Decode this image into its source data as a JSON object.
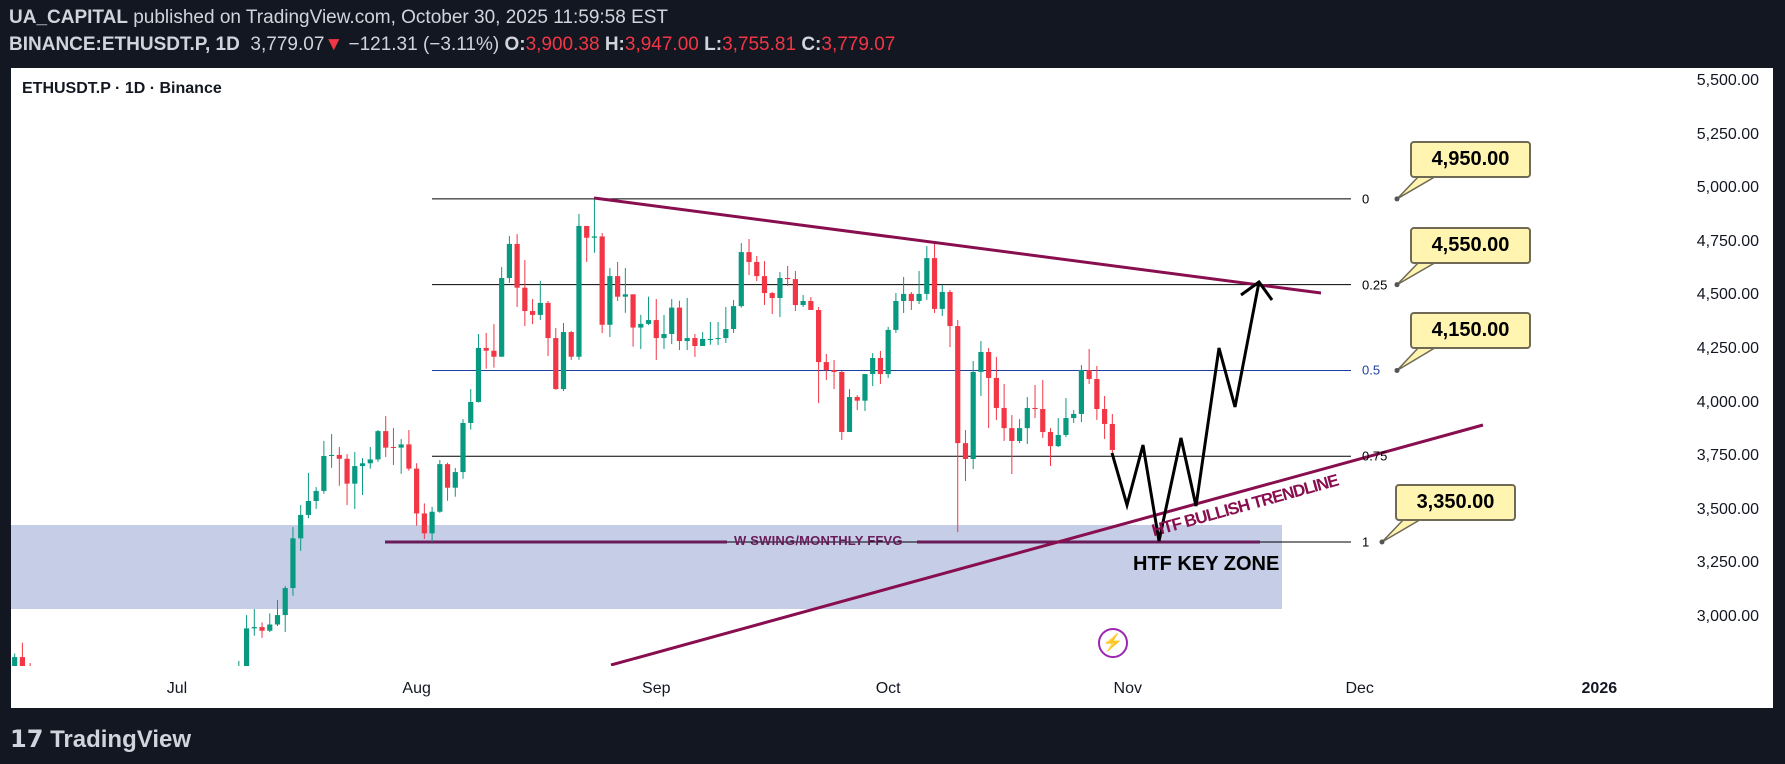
{
  "header": {
    "author": "UA_CAPITAL",
    "published": " published on TradingView.com, October 30, 2025 11:59:58 EST",
    "symbol": "BINANCE:ETHUSDT.P, 1D",
    "last": "3,779.07",
    "direction_glyph": "▼",
    "change": "−121.31 (−3.11%)",
    "o_label": "O:",
    "o": "3,900.38",
    "h_label": "H:",
    "h": "3,947.00",
    "l_label": "L:",
    "l": "3,755.81",
    "c_label": "C:",
    "c": "3,779.07"
  },
  "legend": "ETHUSDT.P · 1D · Binance",
  "footer_brand": "TradingView",
  "colors": {
    "up": "#089981",
    "down": "#f23645",
    "trendline": "#880e4f",
    "zone": "#c5cde7",
    "fib_mid": "#1e3fa0"
  },
  "icons": {
    "lightning": "lightning-bolt-icon"
  },
  "chart_data": {
    "type": "candlestick",
    "title": "ETHUSDT.P · 1D · Binance",
    "ylim": [
      2772,
      5560
    ],
    "y_ticks": [
      "5,500.00",
      "5,250.00",
      "5,000.00",
      "4,750.00",
      "4,500.00",
      "4,250.00",
      "4,000.00",
      "3,750.00",
      "3,500.00",
      "3,250.00",
      "3,000.00"
    ],
    "y_tick_values": [
      5500,
      5250,
      5000,
      4750,
      4500,
      4250,
      4000,
      3750,
      3500,
      3250,
      3000
    ],
    "x_ticks": [
      "Jul",
      "Aug",
      "Sep",
      "Oct",
      "Nov",
      "Dec",
      "2026"
    ],
    "x_tick_dates": [
      "2025-07-01",
      "2025-08-01",
      "2025-09-01",
      "2025-10-01",
      "2025-11-01",
      "2025-12-01",
      "2026-01-01"
    ],
    "grid": false,
    "candles_columns": [
      "date",
      "open",
      "high",
      "low",
      "close"
    ],
    "candles": [
      [
        "2025-06-10",
        2680,
        2830,
        2650,
        2813
      ],
      [
        "2025-06-11",
        2813,
        2880,
        2750,
        2770
      ],
      [
        "2025-06-12",
        2770,
        2785,
        2620,
        2640
      ],
      [
        "2025-07-09",
        2610,
        2795,
        2600,
        2770
      ],
      [
        "2025-07-10",
        2770,
        3009,
        2730,
        2947
      ],
      [
        "2025-07-11",
        2947,
        3037,
        2913,
        2953
      ],
      [
        "2025-07-12",
        2953,
        2975,
        2903,
        2936
      ],
      [
        "2025-07-13",
        2936,
        3017,
        2930,
        2965
      ],
      [
        "2025-07-14",
        2965,
        3079,
        2958,
        3009
      ],
      [
        "2025-07-15",
        3009,
        3145,
        2930,
        3135
      ],
      [
        "2025-07-16",
        3135,
        3420,
        3099,
        3367
      ],
      [
        "2025-07-17",
        3367,
        3522,
        3309,
        3476
      ],
      [
        "2025-07-18",
        3476,
        3672,
        3460,
        3541
      ],
      [
        "2025-07-19",
        3541,
        3606,
        3504,
        3588
      ],
      [
        "2025-07-20",
        3588,
        3821,
        3575,
        3751
      ],
      [
        "2025-07-21",
        3751,
        3853,
        3696,
        3756
      ],
      [
        "2025-07-22",
        3756,
        3793,
        3612,
        3738
      ],
      [
        "2025-07-23",
        3738,
        3760,
        3522,
        3622
      ],
      [
        "2025-07-24",
        3622,
        3769,
        3504,
        3704
      ],
      [
        "2025-07-25",
        3704,
        3741,
        3569,
        3717
      ],
      [
        "2025-07-26",
        3717,
        3793,
        3692,
        3735
      ],
      [
        "2025-07-27",
        3735,
        3872,
        3724,
        3867
      ],
      [
        "2025-07-28",
        3867,
        3937,
        3746,
        3790
      ],
      [
        "2025-07-29",
        3793,
        3881,
        3709,
        3790
      ],
      [
        "2025-07-30",
        3790,
        3830,
        3668,
        3805
      ],
      [
        "2025-07-31",
        3805,
        3872,
        3682,
        3692
      ],
      [
        "2025-08-01",
        3692,
        3717,
        3426,
        3483
      ],
      [
        "2025-08-02",
        3483,
        3530,
        3364,
        3390
      ],
      [
        "2025-08-03",
        3390,
        3514,
        3351,
        3491
      ],
      [
        "2025-08-04",
        3491,
        3732,
        3486,
        3713
      ],
      [
        "2025-08-05",
        3713,
        3720,
        3542,
        3603
      ],
      [
        "2025-08-06",
        3603,
        3695,
        3561,
        3676
      ],
      [
        "2025-08-07",
        3676,
        3923,
        3645,
        3905
      ],
      [
        "2025-08-08",
        3905,
        4063,
        3874,
        4003
      ],
      [
        "2025-08-09",
        4003,
        4320,
        4000,
        4255
      ],
      [
        "2025-08-10",
        4255,
        4325,
        4158,
        4242
      ],
      [
        "2025-08-11",
        4242,
        4366,
        4163,
        4214
      ],
      [
        "2025-08-12",
        4214,
        4632,
        4214,
        4581
      ],
      [
        "2025-08-13",
        4581,
        4777,
        4558,
        4740
      ],
      [
        "2025-08-14",
        4740,
        4786,
        4446,
        4536
      ],
      [
        "2025-08-15",
        4536,
        4665,
        4357,
        4427
      ],
      [
        "2025-08-16",
        4427,
        4483,
        4366,
        4409
      ],
      [
        "2025-08-17",
        4409,
        4567,
        4385,
        4465
      ],
      [
        "2025-08-18",
        4465,
        4474,
        4217,
        4301
      ],
      [
        "2025-08-19",
        4301,
        4348,
        4060,
        4063
      ],
      [
        "2025-08-20",
        4063,
        4371,
        4054,
        4329
      ],
      [
        "2025-08-21",
        4329,
        4334,
        4199,
        4214
      ],
      [
        "2025-08-22",
        4214,
        4880,
        4199,
        4824
      ],
      [
        "2025-08-23",
        4824,
        4824,
        4656,
        4769
      ],
      [
        "2025-08-24",
        4769,
        4957,
        4699,
        4775
      ],
      [
        "2025-08-25",
        4775,
        4791,
        4324,
        4363
      ],
      [
        "2025-08-26",
        4363,
        4628,
        4306,
        4590
      ],
      [
        "2025-08-27",
        4590,
        4656,
        4474,
        4494
      ],
      [
        "2025-08-28",
        4494,
        4628,
        4419,
        4505
      ],
      [
        "2025-08-29",
        4505,
        4505,
        4261,
        4350
      ],
      [
        "2025-08-30",
        4350,
        4409,
        4250,
        4367
      ],
      [
        "2025-08-31",
        4367,
        4494,
        4362,
        4385
      ],
      [
        "2025-09-01",
        4385,
        4483,
        4199,
        4301
      ],
      [
        "2025-09-02",
        4301,
        4409,
        4250,
        4320
      ],
      [
        "2025-09-03",
        4320,
        4483,
        4273,
        4443
      ],
      [
        "2025-09-04",
        4443,
        4475,
        4245,
        4287
      ],
      [
        "2025-09-05",
        4287,
        4488,
        4245,
        4301
      ],
      [
        "2025-09-06",
        4301,
        4320,
        4213,
        4264
      ],
      [
        "2025-09-07",
        4264,
        4329,
        4264,
        4297
      ],
      [
        "2025-09-08",
        4292,
        4376,
        4270,
        4297
      ],
      [
        "2025-09-09",
        4298,
        4376,
        4269,
        4301
      ],
      [
        "2025-09-10",
        4301,
        4446,
        4278,
        4343
      ],
      [
        "2025-09-11",
        4343,
        4478,
        4325,
        4450
      ],
      [
        "2025-09-12",
        4450,
        4744,
        4443,
        4702
      ],
      [
        "2025-09-13",
        4702,
        4763,
        4595,
        4656
      ],
      [
        "2025-09-14",
        4656,
        4684,
        4567,
        4590
      ],
      [
        "2025-09-15",
        4590,
        4660,
        4455,
        4511
      ],
      [
        "2025-09-16",
        4511,
        4516,
        4413,
        4488
      ],
      [
        "2025-09-17",
        4488,
        4609,
        4399,
        4581
      ],
      [
        "2025-09-18",
        4581,
        4637,
        4544,
        4576
      ],
      [
        "2025-09-19",
        4576,
        4614,
        4427,
        4455
      ],
      [
        "2025-09-20",
        4455,
        4502,
        4446,
        4474
      ],
      [
        "2025-09-21",
        4474,
        4492,
        4432,
        4432
      ],
      [
        "2025-09-22",
        4432,
        4446,
        3998,
        4189
      ],
      [
        "2025-09-23",
        4189,
        4227,
        4105,
        4152
      ],
      [
        "2025-09-24",
        4152,
        4199,
        4063,
        4143
      ],
      [
        "2025-09-25",
        4143,
        4147,
        3826,
        3863
      ],
      [
        "2025-09-26",
        3863,
        4063,
        3863,
        4026
      ],
      [
        "2025-09-27",
        4026,
        4035,
        3965,
        4009
      ],
      [
        "2025-09-28",
        4009,
        4133,
        3961,
        4133
      ],
      [
        "2025-09-29",
        4133,
        4231,
        4077,
        4208
      ],
      [
        "2025-09-30",
        4208,
        4241,
        4087,
        4133
      ],
      [
        "2025-10-01",
        4133,
        4353,
        4115,
        4339
      ],
      [
        "2025-10-02",
        4339,
        4511,
        4325,
        4474
      ],
      [
        "2025-10-03",
        4474,
        4586,
        4418,
        4507
      ],
      [
        "2025-10-04",
        4507,
        4516,
        4432,
        4474
      ],
      [
        "2025-10-05",
        4474,
        4614,
        4460,
        4507
      ],
      [
        "2025-10-06",
        4507,
        4730,
        4479,
        4674
      ],
      [
        "2025-10-07",
        4674,
        4749,
        4418,
        4437
      ],
      [
        "2025-10-08",
        4437,
        4548,
        4404,
        4516
      ],
      [
        "2025-10-09",
        4516,
        4525,
        4259,
        4357
      ],
      [
        "2025-10-10",
        4357,
        4385,
        3396,
        3811
      ],
      [
        "2025-10-11",
        3811,
        3872,
        3634,
        3737
      ],
      [
        "2025-10-12",
        3737,
        4194,
        3690,
        4143
      ],
      [
        "2025-10-13",
        4143,
        4287,
        4031,
        4236
      ],
      [
        "2025-10-14",
        4236,
        4255,
        3881,
        4115
      ],
      [
        "2025-10-15",
        4115,
        4213,
        3919,
        3975
      ],
      [
        "2025-10-16",
        3975,
        4087,
        3821,
        3881
      ],
      [
        "2025-10-17",
        3881,
        3942,
        3667,
        3821
      ],
      [
        "2025-10-18",
        3821,
        3923,
        3811,
        3881
      ],
      [
        "2025-10-19",
        3881,
        4026,
        3807,
        3975
      ],
      [
        "2025-10-20",
        3975,
        4082,
        3928,
        3970
      ],
      [
        "2025-10-21",
        3970,
        4105,
        3835,
        3863
      ],
      [
        "2025-10-22",
        3863,
        3881,
        3704,
        3797
      ],
      [
        "2025-10-23",
        3797,
        3928,
        3793,
        3849
      ],
      [
        "2025-10-24",
        3849,
        4021,
        3839,
        3928
      ],
      [
        "2025-10-25",
        3928,
        3965,
        3905,
        3947
      ],
      [
        "2025-10-26",
        3947,
        4175,
        3909,
        4152
      ],
      [
        "2025-10-27",
        4152,
        4250,
        4087,
        4110
      ],
      [
        "2025-10-28",
        4110,
        4171,
        3919,
        3970
      ],
      [
        "2025-10-29",
        3970,
        4031,
        3830,
        3900.38
      ],
      [
        "2025-10-30",
        3900.38,
        3947,
        3755.81,
        3779.07
      ]
    ],
    "fib_levels": [
      {
        "label": "0",
        "price": 4950
      },
      {
        "label": "0.25",
        "price": 4550
      },
      {
        "label": "0.5",
        "price": 4150
      },
      {
        "label": "0.75",
        "price": 3750
      },
      {
        "label": "1",
        "price": 3350
      }
    ],
    "callouts": [
      "4,950.00",
      "4,550.00",
      "4,150.00",
      "3,350.00"
    ],
    "zone_price_range": [
      3028,
      3429
    ],
    "annotations": {
      "swing_label": "W SWING/MONTHLY FFVG",
      "zone_label": "HTF KEY ZONE",
      "trendline_label": "HTF BULLISH TRENDLINE"
    }
  }
}
